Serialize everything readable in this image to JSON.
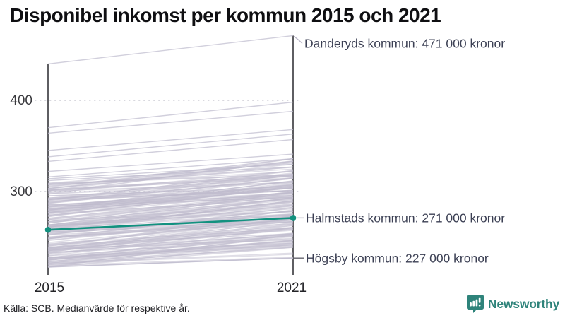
{
  "title": "Disponibel inkomst per kommun 2015 och 2021",
  "footer": {
    "source": "Källa: SCB. Medianvärde för respektive år."
  },
  "brand": {
    "name": "Newsworthy",
    "color": "#2E837A",
    "icon": "bar-chart-speech-bubble-icon"
  },
  "chart_data": {
    "type": "line",
    "subtype": "slope-chart",
    "title": "Disponibel inkomst per kommun 2015 och 2021",
    "x_categories": [
      "2015",
      "2021"
    ],
    "y_ticks": [
      {
        "value": 300,
        "label": "300"
      },
      {
        "value": 400,
        "label": "400"
      }
    ],
    "y_unit": "tusen kronor (medianvärde, disponibel inkomst)",
    "ylim": [
      215,
      475
    ],
    "grid": "dotted horizontal gridlines at ticks",
    "legend": "none",
    "series_highlight": {
      "name": "Halmstads kommun",
      "x": [
        "2015",
        "2021"
      ],
      "values": [
        258,
        271
      ],
      "color": "#12917F",
      "label": "Halmstads kommun: 271 000 kronor"
    },
    "annotations": [
      {
        "id": "max-2021",
        "label": "Danderyds kommun: 471 000 kronor",
        "value": 471,
        "x": "2021",
        "leader_color": "#b8b5c6"
      },
      {
        "id": "highlight-2021",
        "label": "Halmstads kommun: 271 000 kronor",
        "value": 271,
        "x": "2021",
        "leader_color": "#8f8da0"
      },
      {
        "id": "min-2021",
        "label": "Högsby kommun: 227 000 kronor",
        "value": 227,
        "x": "2021",
        "leader_color": "#4d4c58"
      }
    ],
    "background_series_color": "#BFBCCE",
    "background_lines_explicit": [
      [
        440,
        471
      ],
      [
        370,
        398
      ],
      [
        364,
        388
      ],
      [
        345,
        368
      ],
      [
        338,
        363
      ],
      [
        333,
        357
      ],
      [
        322,
        341
      ],
      [
        316,
        336
      ],
      [
        314,
        330
      ],
      [
        312,
        327
      ],
      [
        217,
        227
      ]
    ],
    "background_band": {
      "description": "Remaining Swedish municipalities drawn as overlapping light gray slope lines",
      "count": 200,
      "v2015_range": [
        217,
        312
      ],
      "delta_range": [
        8,
        36
      ],
      "v2021_range": [
        227,
        336
      ],
      "seed": 7
    },
    "axis_color": "#1a1a1f"
  }
}
